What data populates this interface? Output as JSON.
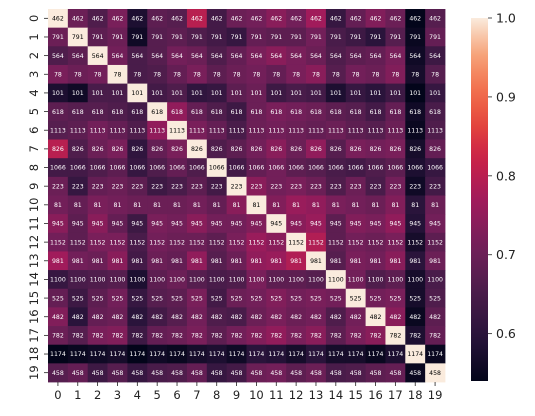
{
  "chart_data": {
    "type": "heatmap",
    "title": "",
    "xlabel": "",
    "ylabel": "",
    "x_categories": [
      "0",
      "1",
      "2",
      "3",
      "4",
      "5",
      "6",
      "7",
      "8",
      "9",
      "10",
      "11",
      "12",
      "13",
      "14",
      "15",
      "16",
      "17",
      "18",
      "19"
    ],
    "y_categories": [
      "0",
      "1",
      "2",
      "3",
      "4",
      "5",
      "6",
      "7",
      "8",
      "9",
      "10",
      "11",
      "12",
      "13",
      "14",
      "15",
      "16",
      "17",
      "18",
      "19"
    ],
    "row_labels": [
      462,
      791,
      564,
      78,
      101,
      618,
      1113,
      826,
      1066,
      223,
      81,
      945,
      1152,
      981,
      1100,
      525,
      482,
      782,
      1174,
      458
    ],
    "values": [
      [
        1.0,
        0.7,
        0.66,
        0.72,
        0.58,
        0.68,
        0.67,
        0.8,
        0.64,
        0.7,
        0.71,
        0.74,
        0.71,
        0.77,
        0.62,
        0.69,
        0.73,
        0.7,
        0.54,
        0.67
      ],
      [
        0.7,
        1.0,
        0.68,
        0.7,
        0.56,
        0.67,
        0.68,
        0.66,
        0.64,
        0.62,
        0.69,
        0.68,
        0.68,
        0.71,
        0.65,
        0.63,
        0.6,
        0.67,
        0.55,
        0.69
      ],
      [
        0.66,
        0.68,
        1.0,
        0.71,
        0.65,
        0.67,
        0.71,
        0.7,
        0.66,
        0.69,
        0.72,
        0.74,
        0.72,
        0.7,
        0.66,
        0.68,
        0.69,
        0.72,
        0.56,
        0.63
      ],
      [
        0.72,
        0.7,
        0.71,
        1.0,
        0.65,
        0.66,
        0.69,
        0.72,
        0.68,
        0.7,
        0.71,
        0.69,
        0.72,
        0.74,
        0.67,
        0.71,
        0.7,
        0.73,
        0.57,
        0.67
      ],
      [
        0.58,
        0.56,
        0.65,
        0.65,
        1.0,
        0.64,
        0.66,
        0.61,
        0.62,
        0.68,
        0.7,
        0.63,
        0.65,
        0.64,
        0.58,
        0.62,
        0.6,
        0.63,
        0.54,
        0.62
      ],
      [
        0.68,
        0.67,
        0.67,
        0.66,
        0.64,
        1.0,
        0.75,
        0.69,
        0.66,
        0.63,
        0.7,
        0.72,
        0.71,
        0.7,
        0.68,
        0.67,
        0.64,
        0.69,
        0.56,
        0.65
      ],
      [
        0.67,
        0.68,
        0.71,
        0.69,
        0.66,
        0.75,
        1.0,
        0.72,
        0.69,
        0.65,
        0.7,
        0.71,
        0.7,
        0.69,
        0.7,
        0.68,
        0.67,
        0.7,
        0.55,
        0.66
      ],
      [
        0.8,
        0.66,
        0.7,
        0.72,
        0.61,
        0.69,
        0.72,
        1.0,
        0.66,
        0.68,
        0.71,
        0.74,
        0.7,
        0.75,
        0.67,
        0.72,
        0.71,
        0.72,
        0.57,
        0.69
      ],
      [
        0.64,
        0.64,
        0.66,
        0.68,
        0.62,
        0.66,
        0.69,
        0.66,
        1.0,
        0.64,
        0.69,
        0.71,
        0.68,
        0.67,
        0.65,
        0.64,
        0.66,
        0.68,
        0.58,
        0.62
      ],
      [
        0.7,
        0.62,
        0.69,
        0.7,
        0.68,
        0.63,
        0.65,
        0.68,
        0.64,
        1.0,
        0.74,
        0.71,
        0.72,
        0.7,
        0.66,
        0.7,
        0.65,
        0.71,
        0.56,
        0.64
      ],
      [
        0.71,
        0.69,
        0.72,
        0.71,
        0.7,
        0.7,
        0.7,
        0.71,
        0.69,
        0.74,
        1.0,
        0.73,
        0.76,
        0.75,
        0.72,
        0.71,
        0.7,
        0.73,
        0.6,
        0.7
      ],
      [
        0.74,
        0.68,
        0.74,
        0.69,
        0.63,
        0.72,
        0.71,
        0.74,
        0.71,
        0.71,
        0.73,
        1.0,
        0.74,
        0.76,
        0.68,
        0.73,
        0.72,
        0.75,
        0.59,
        0.71
      ],
      [
        0.71,
        0.68,
        0.72,
        0.72,
        0.65,
        0.71,
        0.7,
        0.7,
        0.68,
        0.72,
        0.76,
        0.74,
        1.0,
        0.79,
        0.68,
        0.71,
        0.7,
        0.72,
        0.57,
        0.68
      ],
      [
        0.77,
        0.71,
        0.7,
        0.74,
        0.64,
        0.7,
        0.69,
        0.75,
        0.67,
        0.7,
        0.75,
        0.76,
        0.79,
        1.0,
        0.67,
        0.72,
        0.71,
        0.74,
        0.6,
        0.7
      ],
      [
        0.62,
        0.65,
        0.66,
        0.67,
        0.58,
        0.68,
        0.7,
        0.67,
        0.65,
        0.66,
        0.72,
        0.68,
        0.68,
        0.67,
        1.0,
        0.71,
        0.66,
        0.68,
        0.57,
        0.65
      ],
      [
        0.69,
        0.63,
        0.68,
        0.71,
        0.62,
        0.67,
        0.68,
        0.72,
        0.64,
        0.7,
        0.71,
        0.73,
        0.71,
        0.72,
        0.71,
        1.0,
        0.71,
        0.72,
        0.57,
        0.66
      ],
      [
        0.73,
        0.6,
        0.69,
        0.7,
        0.6,
        0.64,
        0.67,
        0.71,
        0.66,
        0.65,
        0.7,
        0.72,
        0.7,
        0.71,
        0.66,
        0.71,
        1.0,
        0.74,
        0.55,
        0.68
      ],
      [
        0.7,
        0.67,
        0.72,
        0.73,
        0.63,
        0.69,
        0.7,
        0.72,
        0.68,
        0.71,
        0.73,
        0.75,
        0.72,
        0.74,
        0.68,
        0.72,
        0.74,
        1.0,
        0.58,
        0.69
      ],
      [
        0.54,
        0.55,
        0.56,
        0.57,
        0.54,
        0.56,
        0.55,
        0.57,
        0.58,
        0.56,
        0.6,
        0.59,
        0.57,
        0.6,
        0.57,
        0.57,
        0.55,
        0.58,
        1.0,
        0.55
      ],
      [
        0.67,
        0.69,
        0.63,
        0.67,
        0.62,
        0.65,
        0.66,
        0.69,
        0.62,
        0.64,
        0.7,
        0.71,
        0.68,
        0.7,
        0.65,
        0.66,
        0.68,
        0.69,
        0.55,
        1.0
      ]
    ],
    "colorbar": {
      "min": 0.54,
      "max": 1.0,
      "ticks": [
        1.0,
        0.9,
        0.8,
        0.7,
        0.6
      ],
      "tick_labels": [
        "1.0",
        "0.9",
        "0.8",
        "0.7",
        "0.6"
      ],
      "colormap": "rocket"
    }
  }
}
